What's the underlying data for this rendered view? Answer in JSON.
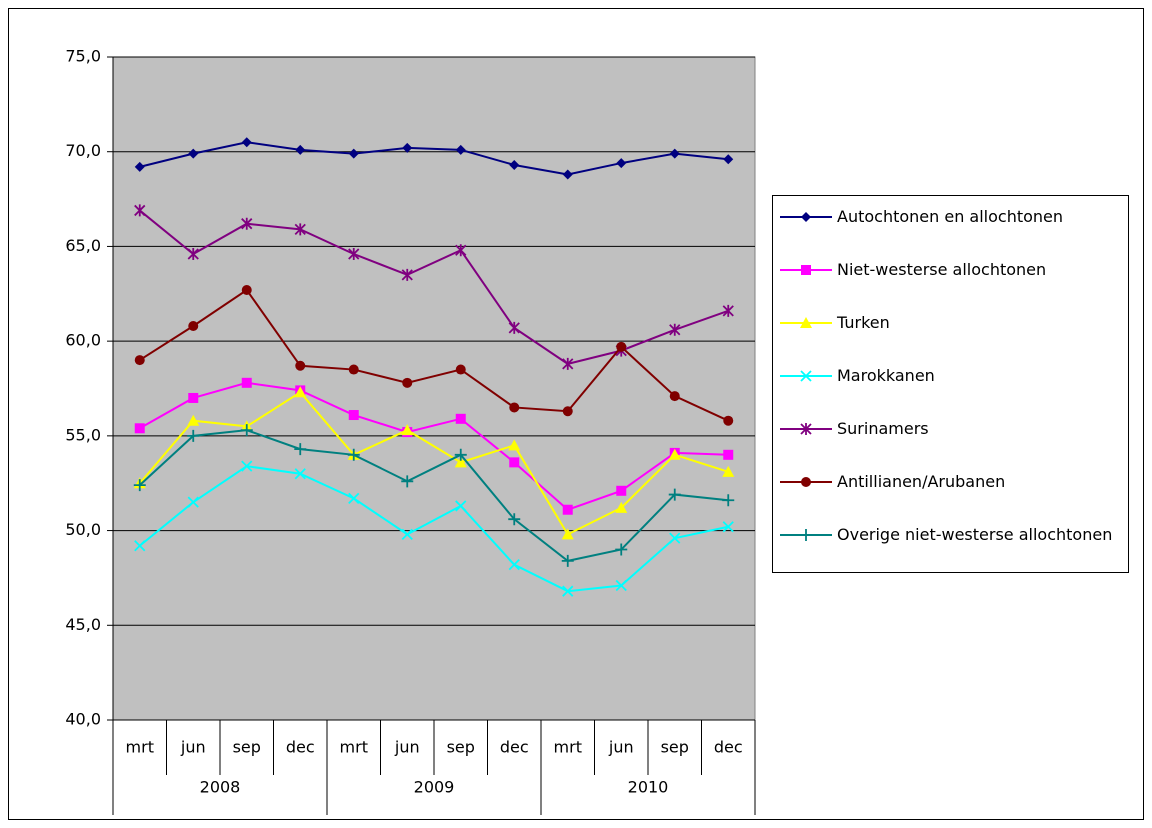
{
  "chart_data": {
    "type": "line",
    "categories": [
      "mrt",
      "jun",
      "sep",
      "dec",
      "mrt",
      "jun",
      "sep",
      "dec",
      "mrt",
      "jun",
      "sep",
      "dec"
    ],
    "groups": [
      {
        "label": "2008",
        "span": 4
      },
      {
        "label": "2009",
        "span": 4
      },
      {
        "label": "2010",
        "span": 4
      }
    ],
    "ylim": [
      40,
      75
    ],
    "yticks": [
      {
        "value": 40,
        "label": "40,0"
      },
      {
        "value": 45,
        "label": "45,0"
      },
      {
        "value": 50,
        "label": "50,0"
      },
      {
        "value": 55,
        "label": "55,0"
      },
      {
        "value": 60,
        "label": "60,0"
      },
      {
        "value": 65,
        "label": "65,0"
      },
      {
        "value": 70,
        "label": "70,0"
      },
      {
        "value": 75,
        "label": "75,0"
      }
    ],
    "grid": true,
    "plot_background": "#c0c0c0",
    "legend": "right",
    "series": [
      {
        "name": "Autochtonen en allochtonen",
        "color": "#000080",
        "marker": "diamond",
        "values": [
          69.2,
          69.9,
          70.5,
          70.1,
          69.9,
          70.2,
          70.1,
          69.3,
          68.8,
          69.4,
          69.9,
          69.6
        ]
      },
      {
        "name": "Niet-westerse allochtonen",
        "color": "#ff00ff",
        "marker": "square",
        "values": [
          55.4,
          57.0,
          57.8,
          57.4,
          56.1,
          55.2,
          55.9,
          53.6,
          51.1,
          52.1,
          54.1,
          54.0
        ]
      },
      {
        "name": "Turken",
        "color": "#ffff00",
        "marker": "triangle",
        "values": [
          52.5,
          55.8,
          55.5,
          57.3,
          54.0,
          55.3,
          53.6,
          54.5,
          49.8,
          51.2,
          54.0,
          53.1
        ]
      },
      {
        "name": "Marokkanen",
        "color": "#00ffff",
        "marker": "x",
        "values": [
          49.2,
          51.5,
          53.4,
          53.0,
          51.7,
          49.8,
          51.3,
          48.2,
          46.8,
          47.1,
          49.6,
          50.2
        ]
      },
      {
        "name": "Surinamers",
        "color": "#800080",
        "marker": "star",
        "values": [
          66.9,
          64.6,
          66.2,
          65.9,
          64.6,
          63.5,
          64.8,
          60.7,
          58.8,
          59.5,
          60.6,
          61.6
        ]
      },
      {
        "name": "Antillianen/Arubanen",
        "color": "#800000",
        "marker": "circle",
        "values": [
          59.0,
          60.8,
          62.7,
          58.7,
          58.5,
          57.8,
          58.5,
          56.5,
          56.3,
          59.7,
          57.1,
          55.8
        ]
      },
      {
        "name": "Overige niet-westerse allochtonen",
        "color": "#008080",
        "marker": "plus",
        "values": [
          52.4,
          55.0,
          55.3,
          54.3,
          54.0,
          52.6,
          54.0,
          50.6,
          48.4,
          49.0,
          51.9,
          51.6
        ]
      }
    ]
  }
}
